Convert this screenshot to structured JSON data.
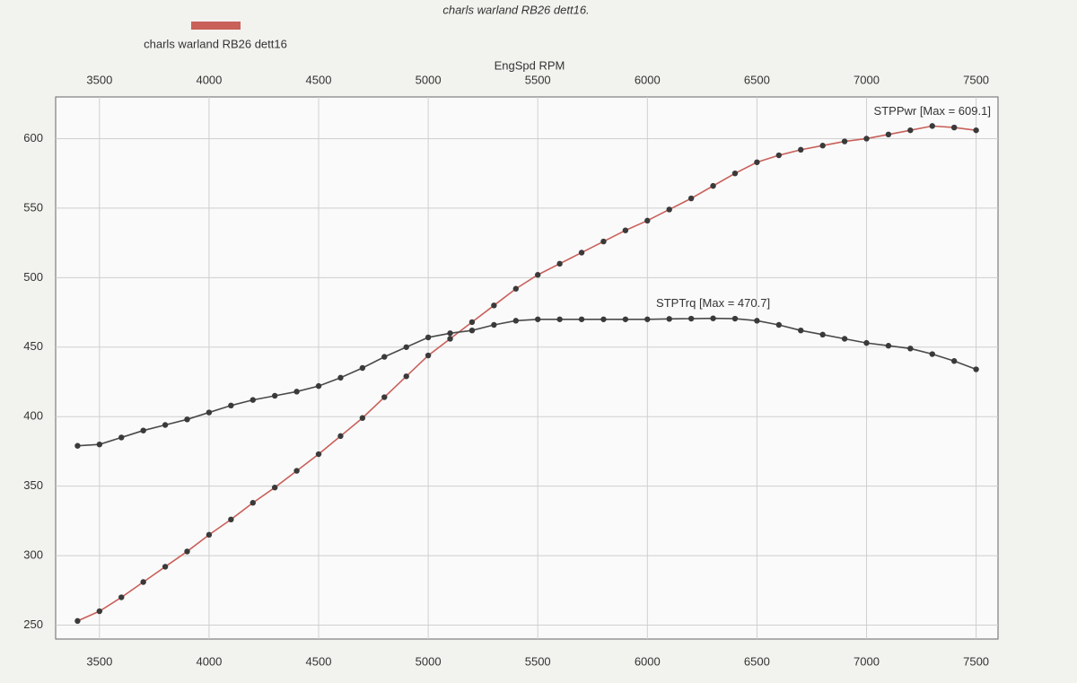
{
  "chart_data": {
    "type": "line",
    "title": "charls warland RB26 dett16.",
    "legend_label": "charls warland RB26 dett16",
    "legend_color": "#c9605a",
    "x_label": "EngSpd RPM",
    "x": [
      3400,
      3500,
      3600,
      3700,
      3800,
      3900,
      4000,
      4100,
      4200,
      4300,
      4400,
      4500,
      4600,
      4700,
      4800,
      4900,
      5000,
      5100,
      5200,
      5300,
      5400,
      5500,
      5600,
      5700,
      5800,
      5900,
      6000,
      6100,
      6200,
      6300,
      6400,
      6500,
      6600,
      6700,
      6800,
      6900,
      7000,
      7100,
      7200,
      7300,
      7400,
      7500
    ],
    "series": [
      {
        "name": "STPPwr [Max = 609.1]",
        "color": "#c9605a",
        "values": [
          253,
          260,
          270,
          281,
          292,
          303,
          315,
          326,
          338,
          349,
          361,
          373,
          386,
          399,
          414,
          429,
          444,
          456,
          468,
          480,
          492,
          502,
          510,
          518,
          526,
          534,
          541,
          549,
          557,
          566,
          575,
          583,
          588,
          592,
          595,
          598,
          600,
          603,
          606,
          609.1,
          608,
          606
        ]
      },
      {
        "name": "STPTrq [Max = 470.7]",
        "color": "#4a4a4a",
        "values": [
          379,
          380,
          385,
          390,
          394,
          398,
          403,
          408,
          412,
          415,
          418,
          422,
          428,
          435,
          443,
          450,
          457,
          460,
          462,
          466,
          469,
          470,
          470,
          470,
          470,
          470,
          470,
          470.3,
          470.5,
          470.7,
          470.5,
          469,
          466,
          462,
          459,
          456,
          453,
          451,
          449,
          445,
          440,
          434
        ]
      }
    ],
    "xlim": [
      3300,
      7600
    ],
    "xticks": [
      3500,
      4000,
      4500,
      5000,
      5500,
      6000,
      6500,
      7000,
      7500
    ],
    "ylim": [
      240,
      630
    ],
    "yticks": [
      250,
      300,
      350,
      400,
      450,
      500,
      550,
      600
    ],
    "grid": true
  }
}
